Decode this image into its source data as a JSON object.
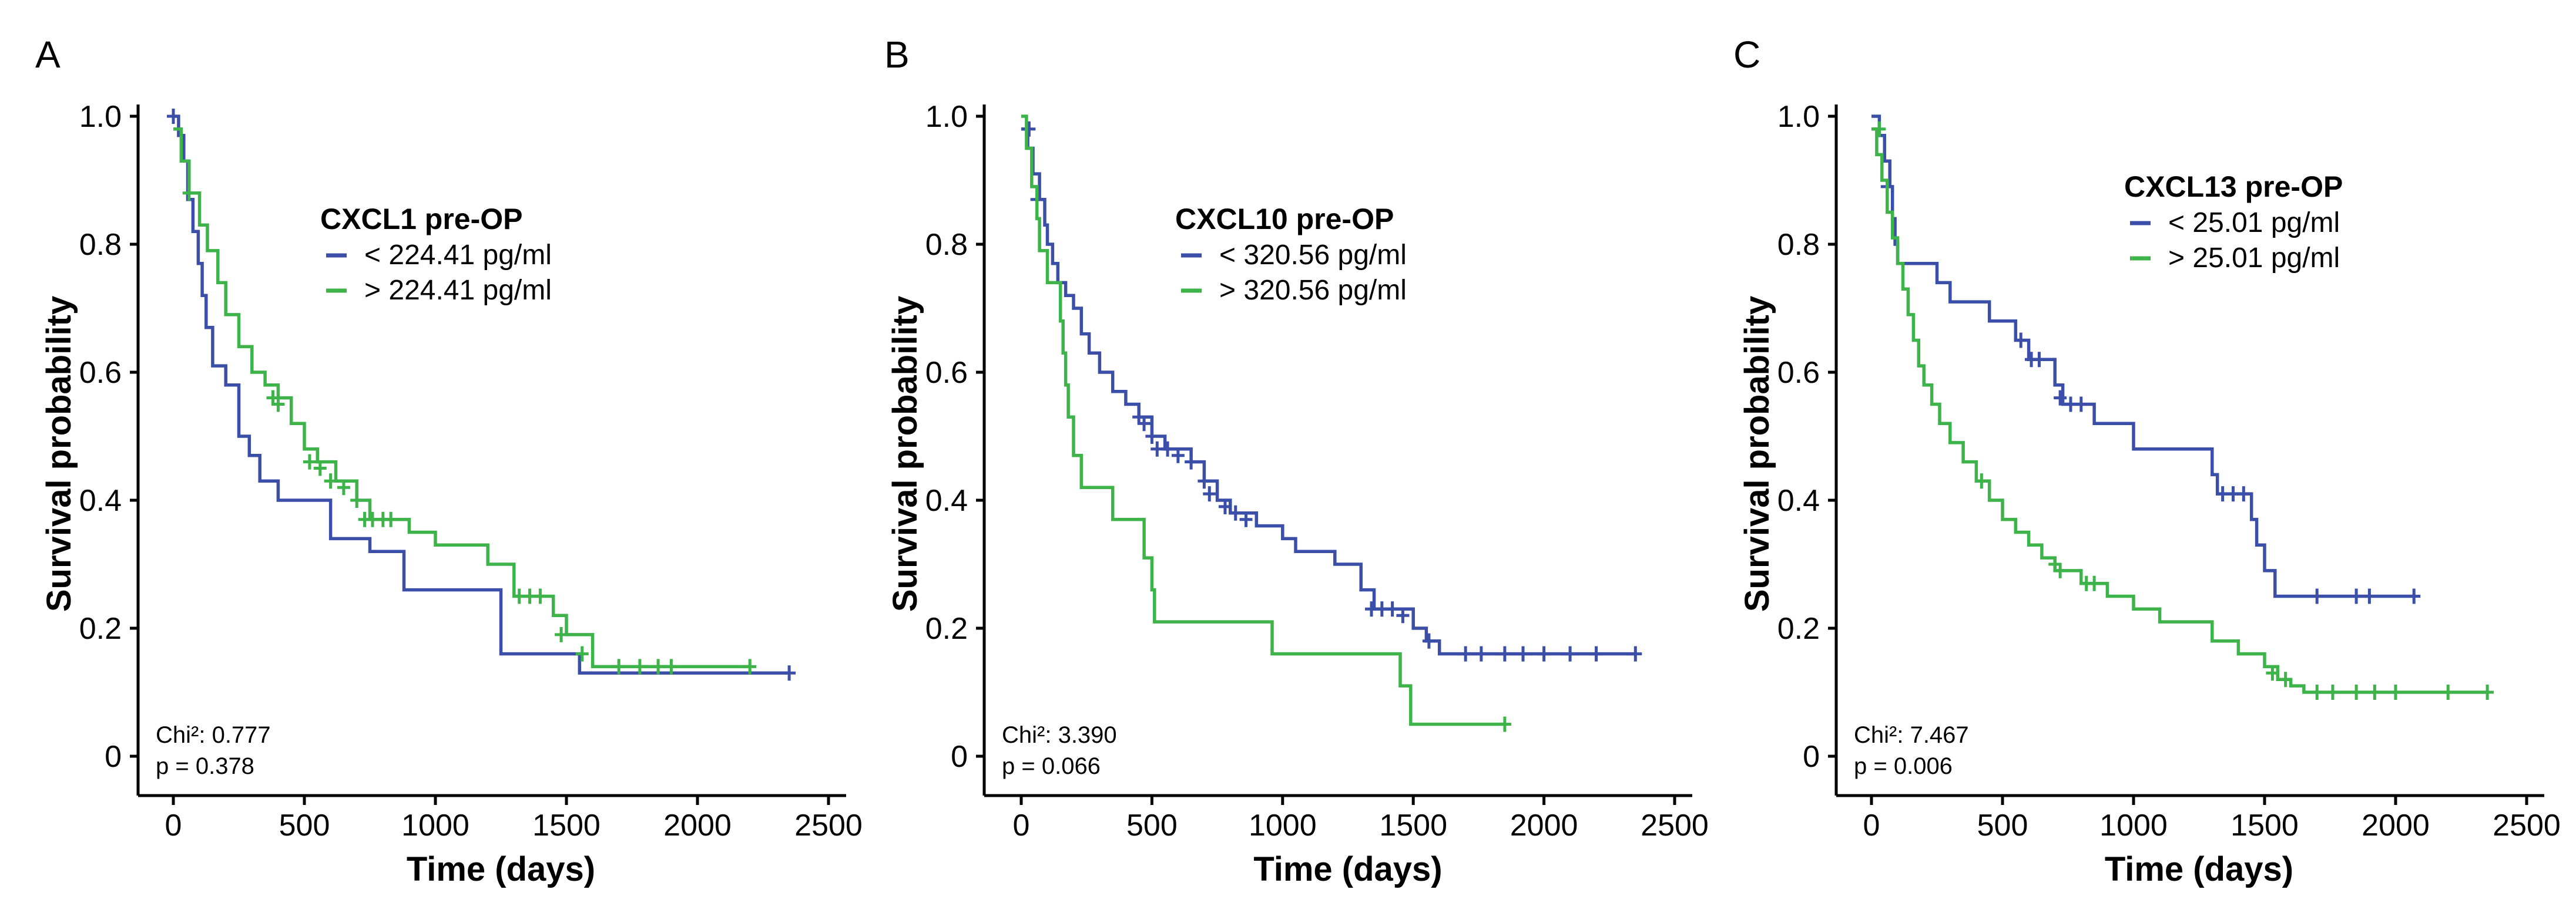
{
  "chart_data": [
    {
      "type": "line",
      "panel": "A",
      "legend_title": "CXCL1 pre-OP",
      "xlabel": "Time (days)",
      "ylabel": "Survival probability",
      "xlim": [
        0,
        2500
      ],
      "ylim": [
        0,
        1.0
      ],
      "x_ticks": [
        "0",
        "500",
        "1000",
        "1500",
        "2000",
        "2500"
      ],
      "y_ticks": [
        "0",
        "0.2",
        "0.4",
        "0.6",
        "0.8",
        "1.0"
      ],
      "stat_chi_label": "Chi²: 0.777",
      "stat_p_label": "p = 0.378",
      "series": [
        {
          "name": "< 224.41 pg/ml",
          "color": "#3b4ea8",
          "points": [
            [
              0,
              1.0
            ],
            [
              20,
              0.97
            ],
            [
              40,
              0.93
            ],
            [
              55,
              0.87
            ],
            [
              75,
              0.82
            ],
            [
              95,
              0.77
            ],
            [
              110,
              0.72
            ],
            [
              125,
              0.67
            ],
            [
              150,
              0.61
            ],
            [
              200,
              0.58
            ],
            [
              250,
              0.5
            ],
            [
              290,
              0.47
            ],
            [
              330,
              0.43
            ],
            [
              400,
              0.4
            ],
            [
              600,
              0.34
            ],
            [
              750,
              0.32
            ],
            [
              880,
              0.26
            ],
            [
              1250,
              0.16
            ],
            [
              1550,
              0.13
            ],
            [
              2350,
              0.13
            ]
          ],
          "censored": [
            [
              0,
              1.0
            ],
            [
              2350,
              0.13
            ]
          ]
        },
        {
          "name": "> 224.41 pg/ml",
          "color": "#3db34a",
          "points": [
            [
              0,
              0.98
            ],
            [
              30,
              0.93
            ],
            [
              60,
              0.88
            ],
            [
              100,
              0.83
            ],
            [
              130,
              0.79
            ],
            [
              170,
              0.74
            ],
            [
              200,
              0.69
            ],
            [
              250,
              0.64
            ],
            [
              300,
              0.6
            ],
            [
              350,
              0.58
            ],
            [
              400,
              0.56
            ],
            [
              450,
              0.52
            ],
            [
              500,
              0.48
            ],
            [
              550,
              0.46
            ],
            [
              620,
              0.43
            ],
            [
              700,
              0.4
            ],
            [
              750,
              0.37
            ],
            [
              900,
              0.35
            ],
            [
              1000,
              0.33
            ],
            [
              1200,
              0.3
            ],
            [
              1300,
              0.25
            ],
            [
              1450,
              0.22
            ],
            [
              1500,
              0.19
            ],
            [
              1600,
              0.14
            ],
            [
              2200,
              0.14
            ]
          ],
          "censored": [
            [
              60,
              0.88
            ],
            [
              380,
              0.56
            ],
            [
              400,
              0.55
            ],
            [
              520,
              0.46
            ],
            [
              560,
              0.45
            ],
            [
              600,
              0.43
            ],
            [
              650,
              0.42
            ],
            [
              700,
              0.4
            ],
            [
              730,
              0.37
            ],
            [
              760,
              0.37
            ],
            [
              800,
              0.37
            ],
            [
              830,
              0.37
            ],
            [
              1320,
              0.25
            ],
            [
              1360,
              0.25
            ],
            [
              1400,
              0.25
            ],
            [
              1480,
              0.19
            ],
            [
              1560,
              0.16
            ],
            [
              1700,
              0.14
            ],
            [
              1780,
              0.14
            ],
            [
              1850,
              0.14
            ],
            [
              1900,
              0.14
            ],
            [
              2200,
              0.14
            ]
          ]
        }
      ]
    },
    {
      "type": "line",
      "panel": "B",
      "legend_title": "CXCL10 pre-OP",
      "xlabel": "Time (days)",
      "ylabel": "Survival probability",
      "xlim": [
        0,
        2500
      ],
      "ylim": [
        0,
        1.0
      ],
      "x_ticks": [
        "0",
        "500",
        "1000",
        "1500",
        "2000",
        "2500"
      ],
      "y_ticks": [
        "0",
        "0.2",
        "0.4",
        "0.6",
        "0.8",
        "1.0"
      ],
      "stat_chi_label": "Chi²: 3.390",
      "stat_p_label": "p = 0.066",
      "series": [
        {
          "name": "< 320.56 pg/ml",
          "color": "#3b4ea8",
          "points": [
            [
              0,
              0.98
            ],
            [
              25,
              0.95
            ],
            [
              45,
              0.91
            ],
            [
              70,
              0.87
            ],
            [
              90,
              0.83
            ],
            [
              100,
              0.8
            ],
            [
              120,
              0.77
            ],
            [
              140,
              0.74
            ],
            [
              170,
              0.72
            ],
            [
              200,
              0.7
            ],
            [
              230,
              0.66
            ],
            [
              260,
              0.63
            ],
            [
              300,
              0.6
            ],
            [
              350,
              0.57
            ],
            [
              400,
              0.55
            ],
            [
              450,
              0.53
            ],
            [
              500,
              0.5
            ],
            [
              550,
              0.48
            ],
            [
              650,
              0.46
            ],
            [
              700,
              0.43
            ],
            [
              750,
              0.4
            ],
            [
              800,
              0.38
            ],
            [
              900,
              0.36
            ],
            [
              1000,
              0.34
            ],
            [
              1050,
              0.32
            ],
            [
              1200,
              0.3
            ],
            [
              1300,
              0.26
            ],
            [
              1350,
              0.23
            ],
            [
              1500,
              0.2
            ],
            [
              1550,
              0.18
            ],
            [
              1600,
              0.16
            ],
            [
              2350,
              0.16
            ]
          ],
          "censored": [
            [
              30,
              0.98
            ],
            [
              60,
              0.87
            ],
            [
              450,
              0.53
            ],
            [
              470,
              0.52
            ],
            [
              500,
              0.5
            ],
            [
              520,
              0.48
            ],
            [
              560,
              0.48
            ],
            [
              600,
              0.47
            ],
            [
              650,
              0.46
            ],
            [
              700,
              0.43
            ],
            [
              720,
              0.41
            ],
            [
              780,
              0.39
            ],
            [
              820,
              0.38
            ],
            [
              860,
              0.37
            ],
            [
              1340,
              0.23
            ],
            [
              1380,
              0.23
            ],
            [
              1420,
              0.23
            ],
            [
              1460,
              0.22
            ],
            [
              1560,
              0.18
            ],
            [
              1700,
              0.16
            ],
            [
              1760,
              0.16
            ],
            [
              1850,
              0.16
            ],
            [
              1920,
              0.16
            ],
            [
              2000,
              0.16
            ],
            [
              2100,
              0.16
            ],
            [
              2200,
              0.16
            ],
            [
              2350,
              0.16
            ]
          ]
        },
        {
          "name": "> 320.56 pg/ml",
          "color": "#3db34a",
          "points": [
            [
              0,
              1.0
            ],
            [
              20,
              0.95
            ],
            [
              40,
              0.89
            ],
            [
              60,
              0.84
            ],
            [
              70,
              0.79
            ],
            [
              100,
              0.74
            ],
            [
              150,
              0.68
            ],
            [
              160,
              0.63
            ],
            [
              170,
              0.58
            ],
            [
              180,
              0.53
            ],
            [
              200,
              0.47
            ],
            [
              230,
              0.42
            ],
            [
              350,
              0.37
            ],
            [
              470,
              0.31
            ],
            [
              500,
              0.26
            ],
            [
              510,
              0.21
            ],
            [
              960,
              0.16
            ],
            [
              1450,
              0.11
            ],
            [
              1490,
              0.05
            ],
            [
              1850,
              0.05
            ]
          ],
          "censored": [
            [
              1850,
              0.05
            ]
          ]
        }
      ]
    },
    {
      "type": "line",
      "panel": "C",
      "legend_title": "CXCL13 pre-OP",
      "xlabel": "Time (days)",
      "ylabel": "Survival probability",
      "xlim": [
        0,
        2500
      ],
      "ylim": [
        0,
        1.0
      ],
      "x_ticks": [
        "0",
        "500",
        "1000",
        "1500",
        "2000",
        "2500"
      ],
      "y_ticks": [
        "0",
        "0.2",
        "0.4",
        "0.6",
        "0.8",
        "1.0"
      ],
      "stat_chi_label": "Chi²: 7.467",
      "stat_p_label": "p = 0.006",
      "series": [
        {
          "name": "< 25.01 pg/ml",
          "color": "#3b4ea8",
          "points": [
            [
              0,
              1.0
            ],
            [
              30,
              0.97
            ],
            [
              50,
              0.93
            ],
            [
              70,
              0.89
            ],
            [
              80,
              0.84
            ],
            [
              90,
              0.8
            ],
            [
              100,
              0.77
            ],
            [
              250,
              0.74
            ],
            [
              300,
              0.71
            ],
            [
              450,
              0.68
            ],
            [
              550,
              0.65
            ],
            [
              600,
              0.62
            ],
            [
              700,
              0.58
            ],
            [
              730,
              0.55
            ],
            [
              850,
              0.52
            ],
            [
              1000,
              0.48
            ],
            [
              1300,
              0.44
            ],
            [
              1320,
              0.41
            ],
            [
              1450,
              0.37
            ],
            [
              1470,
              0.33
            ],
            [
              1500,
              0.29
            ],
            [
              1540,
              0.25
            ],
            [
              2070,
              0.25
            ]
          ],
          "censored": [
            [
              60,
              0.89
            ],
            [
              570,
              0.65
            ],
            [
              610,
              0.62
            ],
            [
              640,
              0.62
            ],
            [
              720,
              0.56
            ],
            [
              760,
              0.55
            ],
            [
              800,
              0.55
            ],
            [
              1340,
              0.41
            ],
            [
              1380,
              0.41
            ],
            [
              1420,
              0.41
            ],
            [
              1700,
              0.25
            ],
            [
              1850,
              0.25
            ],
            [
              1900,
              0.25
            ],
            [
              2070,
              0.25
            ]
          ]
        },
        {
          "name": "> 25.01 pg/ml",
          "color": "#3db34a",
          "points": [
            [
              0,
              0.98
            ],
            [
              20,
              0.94
            ],
            [
              40,
              0.9
            ],
            [
              60,
              0.85
            ],
            [
              80,
              0.81
            ],
            [
              100,
              0.77
            ],
            [
              120,
              0.73
            ],
            [
              140,
              0.69
            ],
            [
              160,
              0.65
            ],
            [
              180,
              0.61
            ],
            [
              200,
              0.58
            ],
            [
              230,
              0.55
            ],
            [
              260,
              0.52
            ],
            [
              300,
              0.49
            ],
            [
              350,
              0.46
            ],
            [
              400,
              0.43
            ],
            [
              450,
              0.4
            ],
            [
              500,
              0.37
            ],
            [
              550,
              0.35
            ],
            [
              600,
              0.33
            ],
            [
              650,
              0.31
            ],
            [
              700,
              0.29
            ],
            [
              800,
              0.27
            ],
            [
              900,
              0.25
            ],
            [
              1000,
              0.23
            ],
            [
              1100,
              0.21
            ],
            [
              1300,
              0.18
            ],
            [
              1400,
              0.16
            ],
            [
              1500,
              0.14
            ],
            [
              1550,
              0.12
            ],
            [
              1600,
              0.11
            ],
            [
              1650,
              0.1
            ],
            [
              2350,
              0.1
            ]
          ],
          "censored": [
            [
              30,
              0.98
            ],
            [
              420,
              0.43
            ],
            [
              700,
              0.3
            ],
            [
              720,
              0.29
            ],
            [
              820,
              0.27
            ],
            [
              850,
              0.27
            ],
            [
              1530,
              0.13
            ],
            [
              1580,
              0.12
            ],
            [
              1700,
              0.1
            ],
            [
              1760,
              0.1
            ],
            [
              1850,
              0.1
            ],
            [
              1920,
              0.1
            ],
            [
              2000,
              0.1
            ],
            [
              2200,
              0.1
            ],
            [
              2350,
              0.1
            ]
          ]
        }
      ]
    }
  ]
}
